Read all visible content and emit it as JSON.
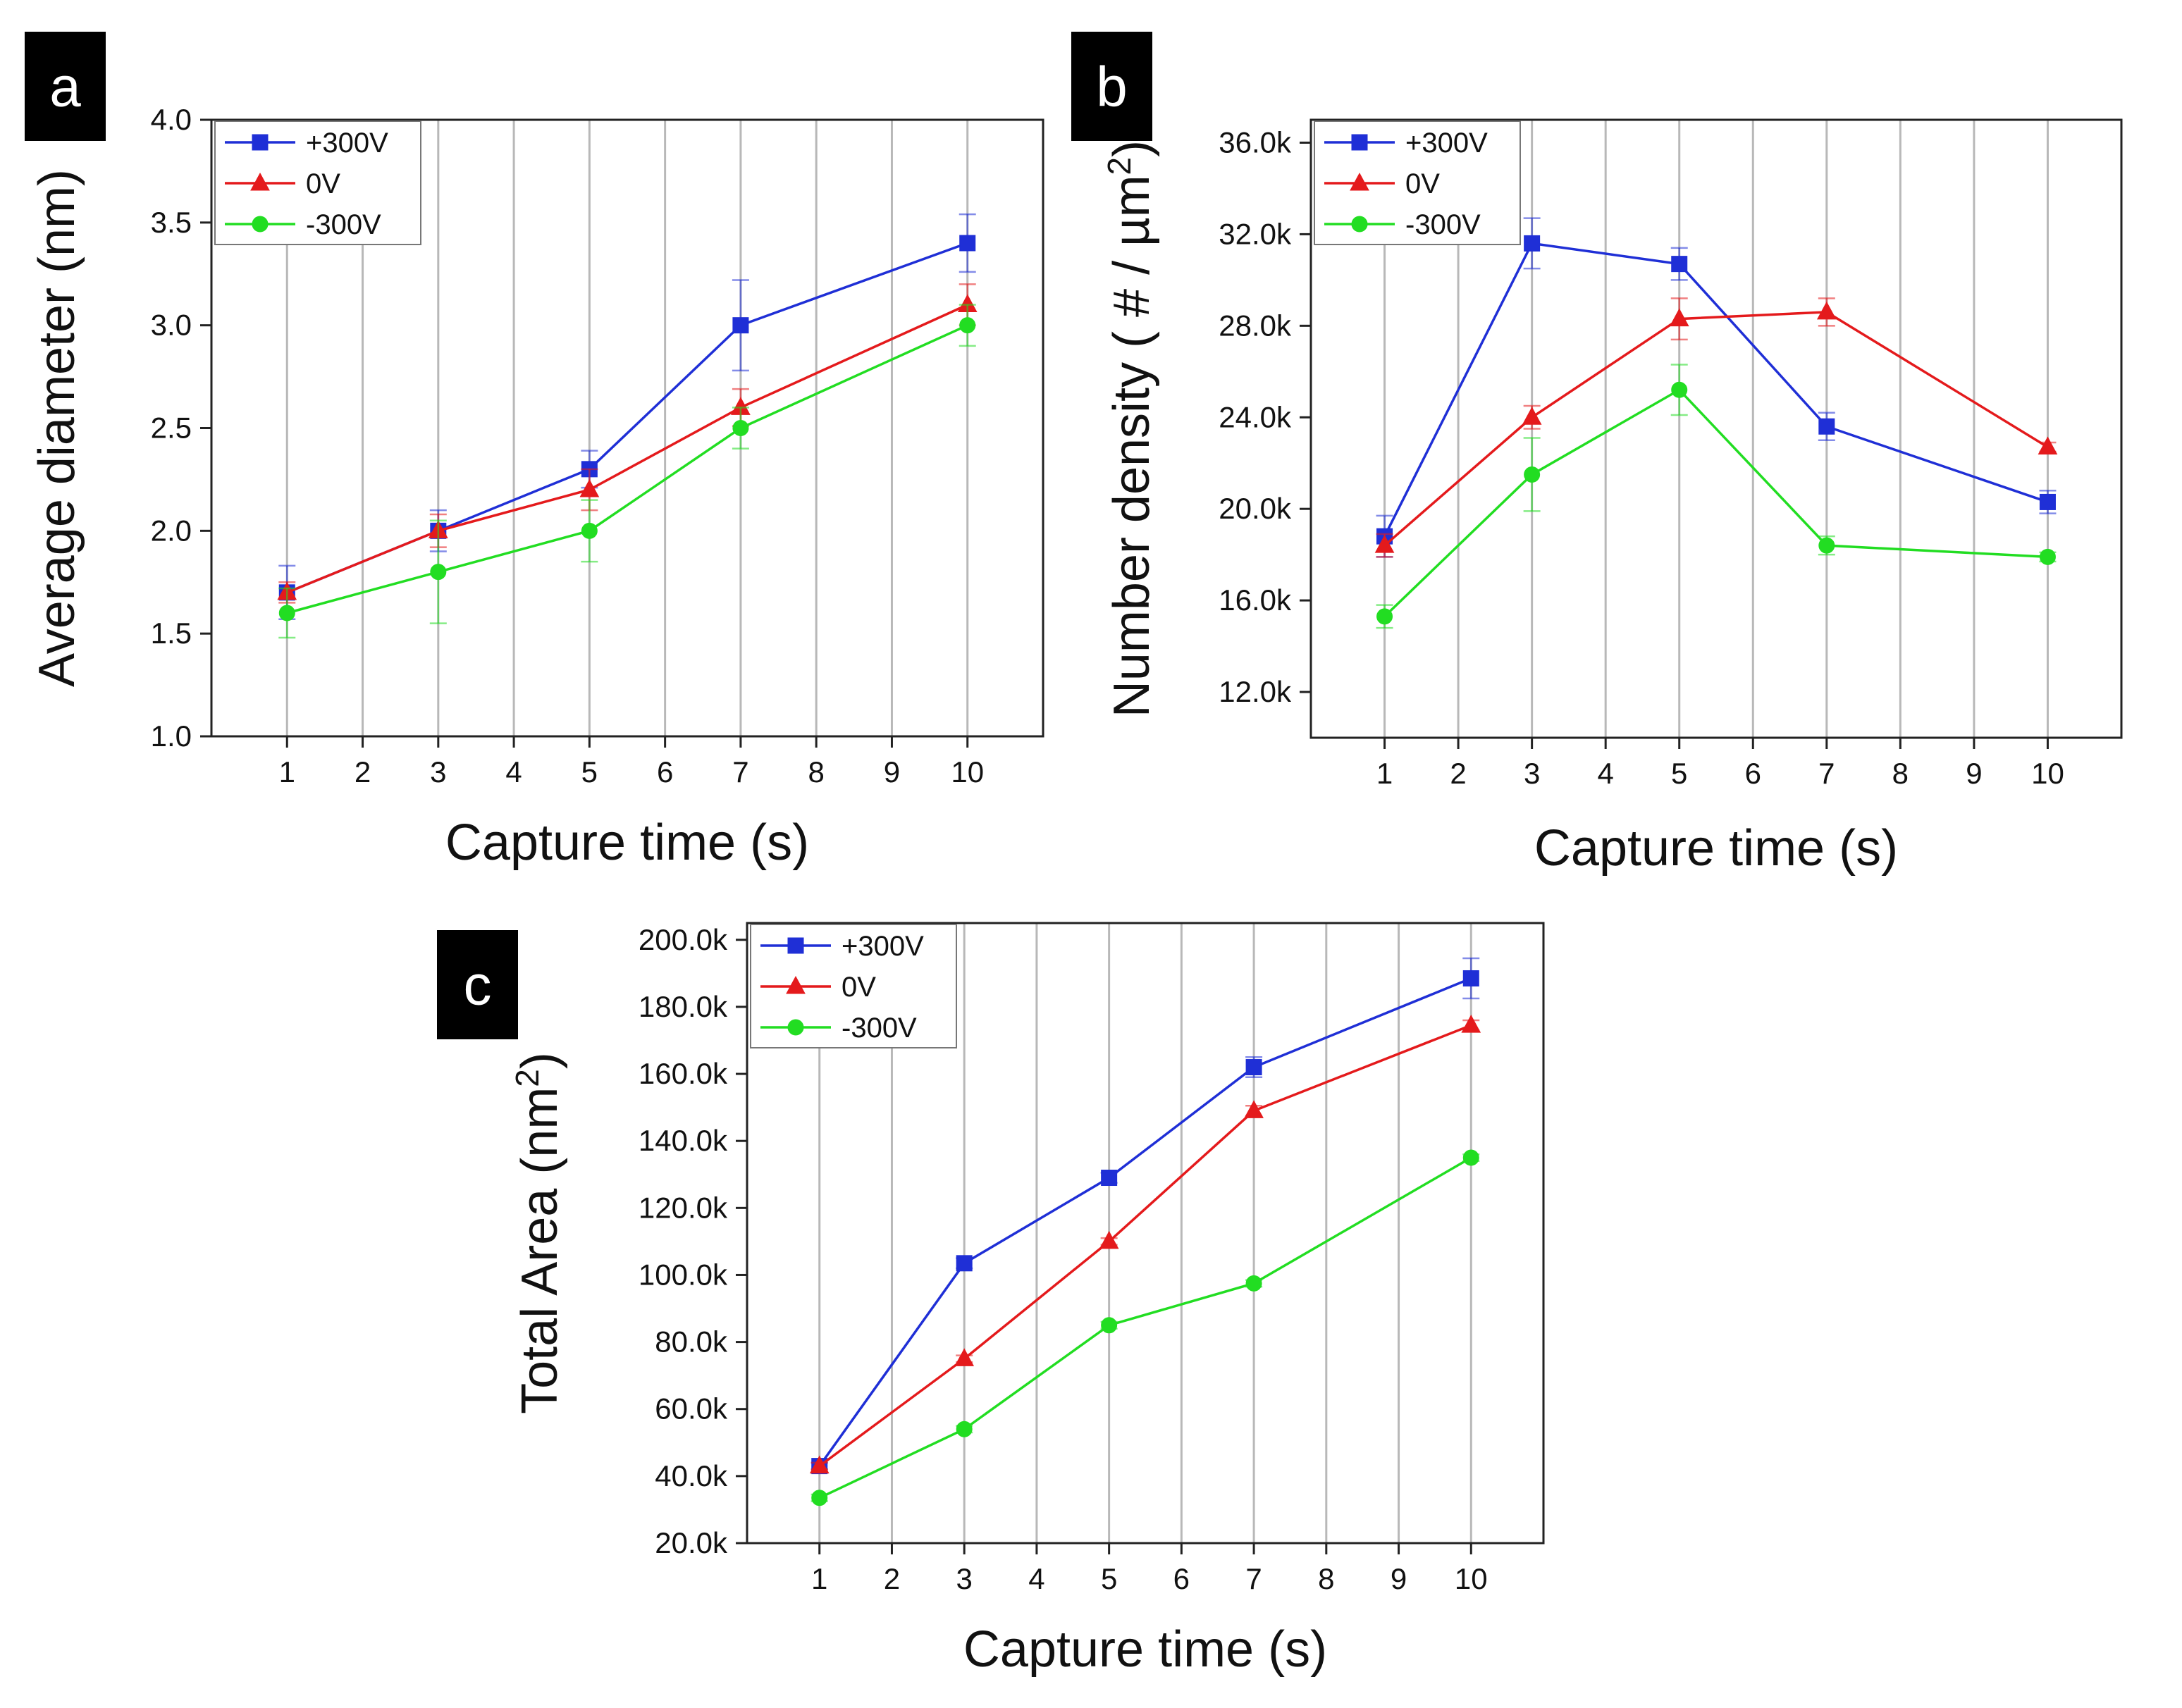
{
  "chart_data": [
    {
      "type": "line",
      "panel_label": "a",
      "title": "",
      "xlabel": "Capture time (s)",
      "ylabel": "Average diameter (nm)",
      "xlim": [
        0,
        11
      ],
      "ylim": [
        1.0,
        4.0
      ],
      "x_ticks": [
        1,
        2,
        3,
        4,
        5,
        6,
        7,
        8,
        9,
        10
      ],
      "y_ticks": [
        1.0,
        1.5,
        2.0,
        2.5,
        3.0,
        3.5,
        4.0
      ],
      "y_tick_labels": [
        "1.0",
        "1.5",
        "2.0",
        "2.5",
        "3.0",
        "3.5",
        "4.0"
      ],
      "grid": "vertical",
      "legend_position": "top-left",
      "x": [
        1,
        3,
        5,
        7,
        10
      ],
      "series": [
        {
          "name": "+300V",
          "color": "#1f2fd6",
          "marker": "square",
          "values": [
            1.7,
            2.0,
            2.3,
            3.0,
            3.4
          ],
          "errors": [
            0.13,
            0.1,
            0.09,
            0.22,
            0.14
          ]
        },
        {
          "name": "0V",
          "color": "#e41a1c",
          "marker": "triangle",
          "values": [
            1.7,
            2.0,
            2.2,
            2.6,
            3.1
          ],
          "errors": [
            0.05,
            0.08,
            0.1,
            0.09,
            0.1
          ]
        },
        {
          "name": "-300V",
          "color": "#22dd22",
          "marker": "circle",
          "values": [
            1.6,
            1.8,
            2.0,
            2.5,
            3.0
          ],
          "errors": [
            0.12,
            0.25,
            0.15,
            0.1,
            0.1
          ]
        }
      ]
    },
    {
      "type": "line",
      "panel_label": "b",
      "title": "",
      "xlabel": "Capture time (s)",
      "ylabel": "Number density ( # / µm",
      "ylabel_superscript": "2",
      "ylabel_suffix": ")",
      "xlim": [
        0,
        11
      ],
      "ylim": [
        10000,
        37000
      ],
      "x_ticks": [
        1,
        2,
        3,
        4,
        5,
        6,
        7,
        8,
        9,
        10
      ],
      "y_ticks": [
        12000,
        16000,
        20000,
        24000,
        28000,
        32000,
        36000
      ],
      "y_tick_labels": [
        "12.0k",
        "16.0k",
        "20.0k",
        "24.0k",
        "28.0k",
        "32.0k",
        "36.0k"
      ],
      "grid": "vertical",
      "legend_position": "top-left",
      "x": [
        1,
        3,
        5,
        7,
        10
      ],
      "series": [
        {
          "name": "+300V",
          "color": "#1f2fd6",
          "marker": "square",
          "values": [
            18800,
            31600,
            30700,
            23600,
            20300
          ],
          "errors": [
            900,
            1100,
            700,
            600,
            500
          ]
        },
        {
          "name": "0V",
          "color": "#e41a1c",
          "marker": "triangle",
          "values": [
            18400,
            24000,
            28300,
            28600,
            22700
          ],
          "errors": [
            500,
            500,
            900,
            600,
            200
          ]
        },
        {
          "name": "-300V",
          "color": "#22dd22",
          "marker": "circle",
          "values": [
            15300,
            21500,
            25200,
            18400,
            17900
          ],
          "errors": [
            500,
            1600,
            1100,
            400,
            200
          ]
        }
      ]
    },
    {
      "type": "line",
      "panel_label": "c",
      "title": "",
      "xlabel": "Capture time (s)",
      "ylabel": "Total Area (nm",
      "ylabel_superscript": "2",
      "ylabel_suffix": ")",
      "xlim": [
        0,
        11
      ],
      "ylim": [
        20000,
        205000
      ],
      "x_ticks": [
        1,
        2,
        3,
        4,
        5,
        6,
        7,
        8,
        9,
        10
      ],
      "y_ticks": [
        20000,
        40000,
        60000,
        80000,
        100000,
        120000,
        140000,
        160000,
        180000,
        200000
      ],
      "y_tick_labels": [
        "20.0k",
        "40.0k",
        "60.0k",
        "80.0k",
        "100.0k",
        "120.0k",
        "140.0k",
        "160.0k",
        "180.0k",
        "200.0k"
      ],
      "grid": "vertical",
      "legend_position": "top-left",
      "x": [
        1,
        3,
        5,
        7,
        10
      ],
      "series": [
        {
          "name": "+300V",
          "color": "#1f2fd6",
          "marker": "square",
          "values": [
            43000,
            103500,
            129000,
            162000,
            188500
          ],
          "errors": [
            1000,
            1500,
            1500,
            3000,
            6000
          ]
        },
        {
          "name": "0V",
          "color": "#e41a1c",
          "marker": "triangle",
          "values": [
            43000,
            75000,
            110000,
            149000,
            174500
          ],
          "errors": [
            1000,
            1000,
            1000,
            1500,
            1500
          ]
        },
        {
          "name": "-300V",
          "color": "#22dd22",
          "marker": "circle",
          "values": [
            33500,
            54000,
            85000,
            97500,
            135000
          ],
          "errors": [
            1000,
            1000,
            1000,
            1000,
            1000
          ]
        }
      ]
    }
  ]
}
